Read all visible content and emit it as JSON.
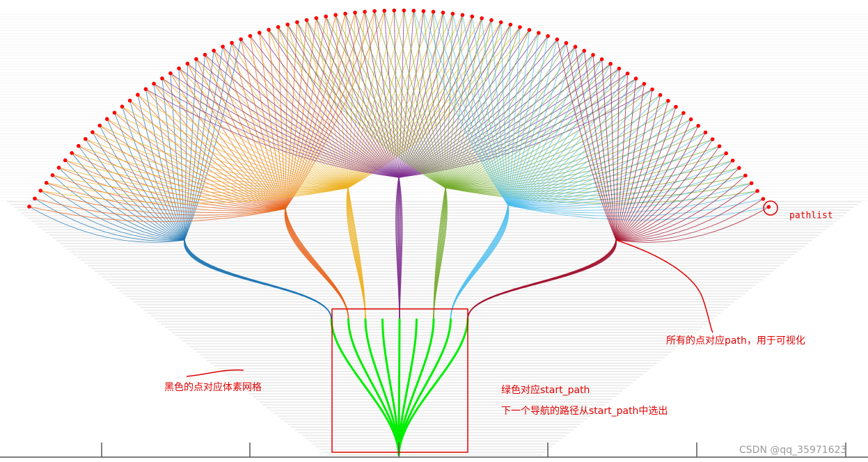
{
  "annotations": {
    "pathlist": "pathlist",
    "all_points": "所有的点对应path，用于可视化",
    "black_points": "黑色的点对应体素网格",
    "green": "绿色对应start_path",
    "next_path": "下一个导航的路径从start_path中选出"
  },
  "watermark": "CSDN @qq_35971623"
}
